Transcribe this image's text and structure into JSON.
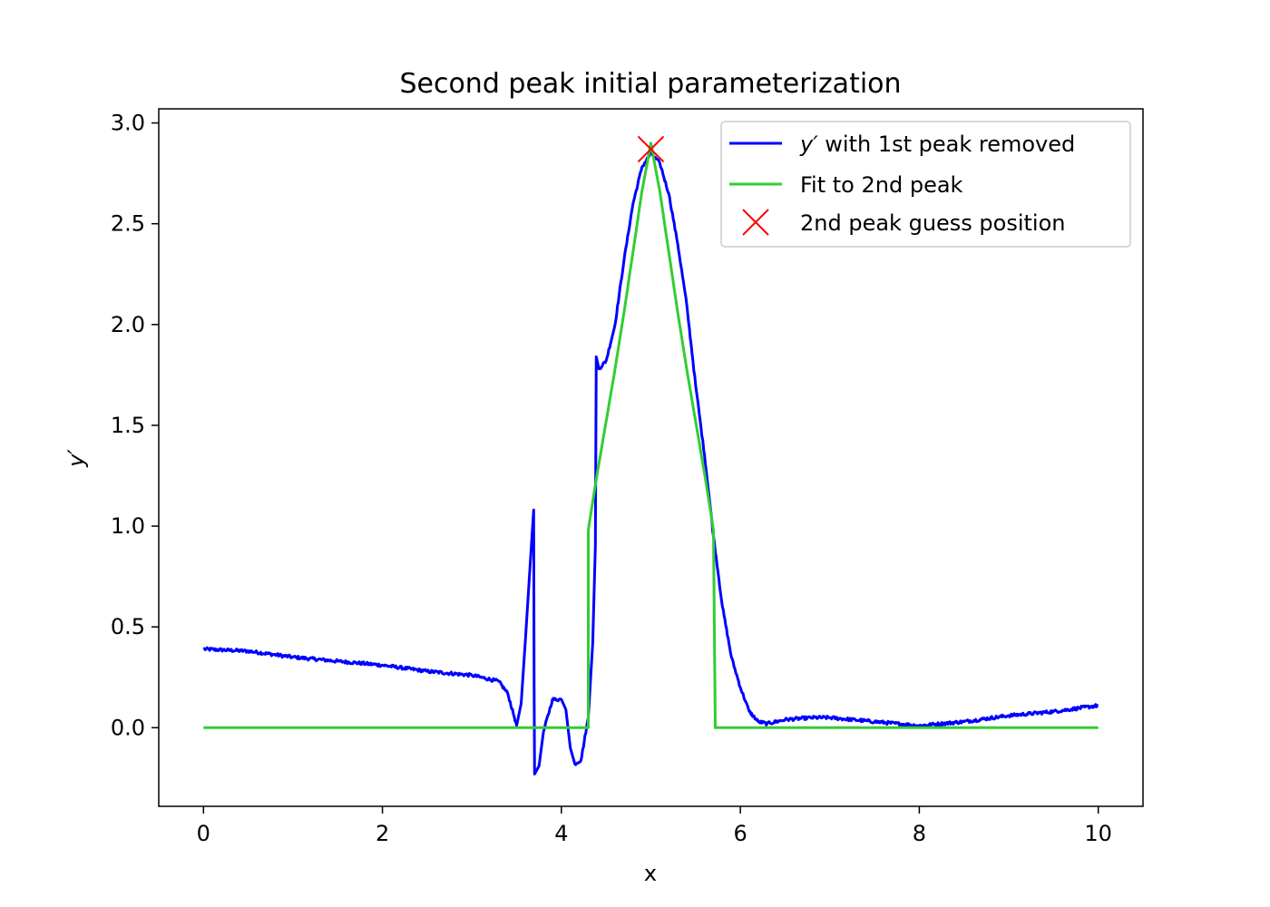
{
  "chart_data": {
    "type": "line",
    "title": "Second peak initial parameterization",
    "xlabel": "x",
    "ylabel": "y′",
    "xlim": [
      -0.5,
      10.5
    ],
    "ylim": [
      -0.39,
      3.07
    ],
    "x_ticks": [
      0,
      2,
      4,
      6,
      8,
      10
    ],
    "y_ticks": [
      0.0,
      0.5,
      1.0,
      1.5,
      2.0,
      2.5,
      3.0
    ],
    "x_tick_labels": [
      "0",
      "2",
      "4",
      "6",
      "8",
      "10"
    ],
    "y_tick_labels": [
      "0.0",
      "0.5",
      "1.0",
      "1.5",
      "2.0",
      "2.5",
      "3.0"
    ],
    "grid": false,
    "legend_position": "top-right",
    "series": [
      {
        "name": "y′ with 1st peak removed",
        "legend_prefix": "y′",
        "legend_suffix": " with 1st peak removed",
        "color": "#0000ff",
        "kind": "line",
        "noise": 0.008,
        "points": [
          [
            0,
            0.39
          ],
          [
            0.5,
            0.38
          ],
          [
            1,
            0.35
          ],
          [
            1.5,
            0.33
          ],
          [
            2,
            0.31
          ],
          [
            2.5,
            0.28
          ],
          [
            3,
            0.26
          ],
          [
            3.3,
            0.23
          ],
          [
            3.4,
            0.17
          ],
          [
            3.5,
            0.01
          ],
          [
            3.55,
            0.12
          ],
          [
            3.6,
            0.45
          ],
          [
            3.65,
            0.8
          ],
          [
            3.69,
            1.08
          ],
          [
            3.695,
            0.2
          ],
          [
            3.7,
            -0.23
          ],
          [
            3.75,
            -0.19
          ],
          [
            3.8,
            -0.02
          ],
          [
            3.9,
            0.14
          ],
          [
            4.0,
            0.14
          ],
          [
            4.05,
            0.09
          ],
          [
            4.1,
            -0.1
          ],
          [
            4.15,
            -0.18
          ],
          [
            4.22,
            -0.16
          ],
          [
            4.3,
            0.05
          ],
          [
            4.35,
            0.42
          ],
          [
            4.38,
            0.9
          ],
          [
            4.39,
            1.84
          ],
          [
            4.42,
            1.78
          ],
          [
            4.5,
            1.82
          ],
          [
            4.6,
            2.0
          ],
          [
            4.7,
            2.32
          ],
          [
            4.8,
            2.6
          ],
          [
            4.9,
            2.78
          ],
          [
            5.0,
            2.85
          ],
          [
            5.1,
            2.8
          ],
          [
            5.2,
            2.65
          ],
          [
            5.3,
            2.4
          ],
          [
            5.4,
            2.1
          ],
          [
            5.5,
            1.7
          ],
          [
            5.6,
            1.35
          ],
          [
            5.7,
            0.95
          ],
          [
            5.8,
            0.6
          ],
          [
            5.9,
            0.35
          ],
          [
            6.0,
            0.2
          ],
          [
            6.1,
            0.08
          ],
          [
            6.2,
            0.03
          ],
          [
            6.3,
            0.02
          ],
          [
            6.5,
            0.04
          ],
          [
            6.8,
            0.05
          ],
          [
            7.0,
            0.05
          ],
          [
            7.5,
            0.03
          ],
          [
            8.0,
            0.01
          ],
          [
            8.5,
            0.03
          ],
          [
            9.0,
            0.06
          ],
          [
            9.5,
            0.08
          ],
          [
            10.0,
            0.11
          ]
        ]
      },
      {
        "name": "Fit to 2nd peak",
        "color": "#32cd32",
        "kind": "line",
        "points": [
          [
            0,
            0
          ],
          [
            4.3,
            0
          ],
          [
            4.3,
            0.98
          ],
          [
            4.4,
            1.26
          ],
          [
            4.5,
            1.52
          ],
          [
            4.6,
            1.78
          ],
          [
            4.7,
            2.06
          ],
          [
            4.8,
            2.36
          ],
          [
            4.9,
            2.66
          ],
          [
            5.0,
            2.9
          ],
          [
            5.1,
            2.66
          ],
          [
            5.2,
            2.36
          ],
          [
            5.3,
            2.06
          ],
          [
            5.4,
            1.78
          ],
          [
            5.5,
            1.52
          ],
          [
            5.6,
            1.26
          ],
          [
            5.7,
            0.98
          ],
          [
            5.72,
            0
          ],
          [
            10,
            0
          ]
        ]
      },
      {
        "name": "2nd peak guess position",
        "color": "#ff0000",
        "kind": "marker",
        "marker": "x",
        "points": [
          [
            5.0,
            2.87
          ]
        ]
      }
    ]
  }
}
